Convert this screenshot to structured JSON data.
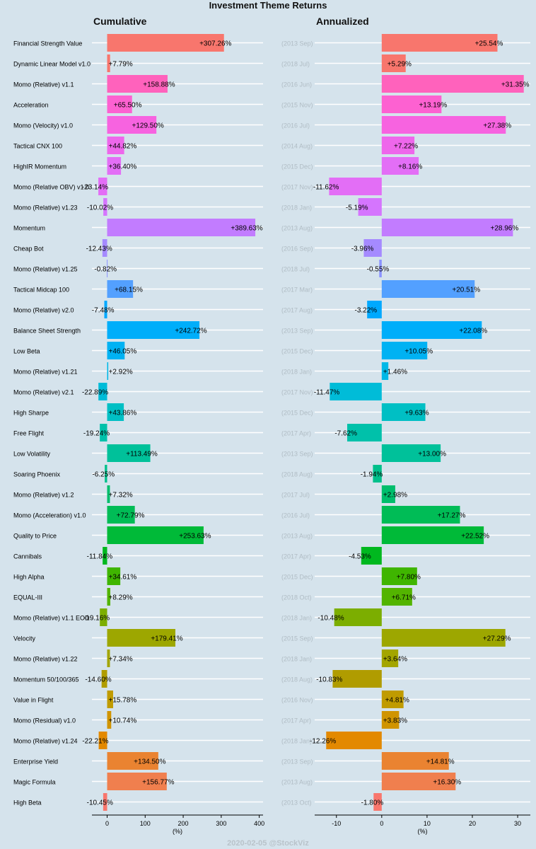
{
  "title": "Investment Theme Returns",
  "footer": "2020-02-05 @StockViz",
  "chart_data": {
    "type": "bar",
    "orientation": "horizontal",
    "categories": [
      "Financial Strength Value",
      "Dynamic Linear Model v1.0",
      "Momo (Relative) v1.1",
      "Acceleration",
      "Momo (Velocity) v1.0",
      "Tactical CNX 100",
      "HighIR Momentum",
      "Momo (Relative OBV) v1.0",
      "Momo (Relative) v1.23",
      "Momentum",
      "Cheap Bot",
      "Momo (Relative) v1.25",
      "Tactical Midcap 100",
      "Momo (Relative) v2.0",
      "Balance Sheet Strength",
      "Low Beta",
      "Momo (Relative) v1.21",
      "Momo (Relative) v2.1",
      "High Sharpe",
      "Free Flight",
      "Low Volatility",
      "Soaring Phoenix",
      "Momo (Relative) v1.2",
      "Momo (Acceleration) v1.0",
      "Quality to Price",
      "Cannibals",
      "High Alpha",
      "EQUAL-III",
      "Momo (Relative) v1.1 EOD",
      "Velocity",
      "Momo (Relative) v1.22",
      "Momentum 50/100/365",
      "Value in Flight",
      "Momo (Residual) v1.0",
      "Momo (Relative) v1.24",
      "Enterprise Yield",
      "Magic Formula",
      "High Beta"
    ],
    "start_dates": [
      "(2013 Sep)",
      "(2018 Jul)",
      "(2016 Jun)",
      "(2015 Nov)",
      "(2016 Jul)",
      "(2014 Aug)",
      "(2015 Dec)",
      "(2017 Nov)",
      "(2018 Jan)",
      "(2013 Aug)",
      "(2016 Sep)",
      "(2018 Jul)",
      "(2017 Mar)",
      "(2017 Aug)",
      "(2013 Sep)",
      "(2015 Dec)",
      "(2018 Jan)",
      "(2017 Nov)",
      "(2015 Dec)",
      "(2017 Apr)",
      "(2013 Sep)",
      "(2018 Aug)",
      "(2017 Jul)",
      "(2016 Jul)",
      "(2013 Aug)",
      "(2017 Apr)",
      "(2015 Dec)",
      "(2018 Oct)",
      "(2018 Jan)",
      "(2015 Sep)",
      "(2018 Jan)",
      "(2018 Aug)",
      "(2016 Nov)",
      "(2017 Apr)",
      "(2018 Jan)",
      "(2013 Sep)",
      "(2013 Aug)",
      "(2013 Oct)"
    ],
    "colors": [
      "#f8766d",
      "#f8766d",
      "#ff62bc",
      "#fd61d1",
      "#f763e0",
      "#ee67eb",
      "#e36ef6",
      "#e36ef6",
      "#d575fe",
      "#c27cff",
      "#a58aff",
      "#8b93ff",
      "#53a0ff",
      "#00a9ff",
      "#00aefa",
      "#00b2f3",
      "#00b8e7",
      "#00bcd8",
      "#00bfc4",
      "#00c1aa",
      "#00c19a",
      "#00c08b",
      "#00be6c",
      "#00bc56",
      "#00ba38",
      "#00b81f",
      "#3fb500",
      "#53b400",
      "#7cae00",
      "#9da700",
      "#a3a500",
      "#b09c00",
      "#c09b00",
      "#d09400",
      "#e38900",
      "#ea8331",
      "#f07f4e",
      "#f8766d"
    ],
    "series": [
      {
        "name": "Cumulative",
        "values": [
          307.26,
          7.79,
          158.88,
          65.5,
          129.5,
          44.82,
          36.4,
          -23.14,
          -10.02,
          389.63,
          -12.43,
          -0.82,
          68.15,
          -7.48,
          242.72,
          46.05,
          2.92,
          -22.89,
          43.86,
          -19.24,
          113.49,
          -6.25,
          7.32,
          72.79,
          253.63,
          -11.84,
          34.61,
          8.29,
          -19.16,
          179.41,
          7.34,
          -14.6,
          15.78,
          10.74,
          -22.21,
          134.5,
          156.77,
          -10.45
        ],
        "labels": [
          "+307.26%",
          "+7.79%",
          "+158.88%",
          "+65.50%",
          "+129.50%",
          "+44.82%",
          "+36.40%",
          "-23.14%",
          "-10.02%",
          "+389.63%",
          "-12.43%",
          "-0.82%",
          "+68.15%",
          "-7.48%",
          "+242.72%",
          "+46.05%",
          "+2.92%",
          "-22.89%",
          "+43.86%",
          "-19.24%",
          "+113.49%",
          "-6.25%",
          "+7.32%",
          "+72.79%",
          "+253.63%",
          "-11.84%",
          "+34.61%",
          "+8.29%",
          "-19.16%",
          "+179.41%",
          "+7.34%",
          "-14.60%",
          "+15.78%",
          "+10.74%",
          "-22.21%",
          "+134.50%",
          "+156.77%",
          "-10.45%"
        ],
        "xlim": [
          -40,
          410
        ],
        "ticks": [
          0,
          100,
          200,
          300,
          400
        ]
      },
      {
        "name": "Annualized",
        "values": [
          25.54,
          5.29,
          31.35,
          13.19,
          27.38,
          7.22,
          8.16,
          -11.62,
          -5.19,
          28.96,
          -3.96,
          -0.55,
          20.51,
          -3.22,
          22.08,
          10.05,
          1.46,
          -11.47,
          9.63,
          -7.62,
          13.0,
          -1.94,
          2.98,
          17.27,
          22.52,
          -4.53,
          7.8,
          6.71,
          -10.48,
          27.29,
          3.64,
          -10.83,
          4.81,
          3.83,
          -12.26,
          14.81,
          16.3,
          -1.8
        ],
        "labels": [
          "+25.54%",
          "+5.29%",
          "+31.35%",
          "+13.19%",
          "+27.38%",
          "+7.22%",
          "+8.16%",
          "-11.62%",
          "-5.19%",
          "+28.96%",
          "-3.96%",
          "-0.55%",
          "+20.51%",
          "-3.22%",
          "+22.08%",
          "+10.05%",
          "+1.46%",
          "-11.47%",
          "+9.63%",
          "-7.62%",
          "+13.00%",
          "-1.94%",
          "+2.98%",
          "+17.27%",
          "+22.52%",
          "-4.53%",
          "+7.80%",
          "+6.71%",
          "-10.48%",
          "+27.29%",
          "+3.64%",
          "-10.83%",
          "+4.81%",
          "+3.83%",
          "-12.26%",
          "+14.81%",
          "+16.30%",
          "-1.80%"
        ],
        "xlim": [
          -14.8,
          32.8
        ],
        "ticks": [
          -10,
          0,
          10,
          20,
          30
        ]
      }
    ],
    "xlabel": "(%)"
  }
}
